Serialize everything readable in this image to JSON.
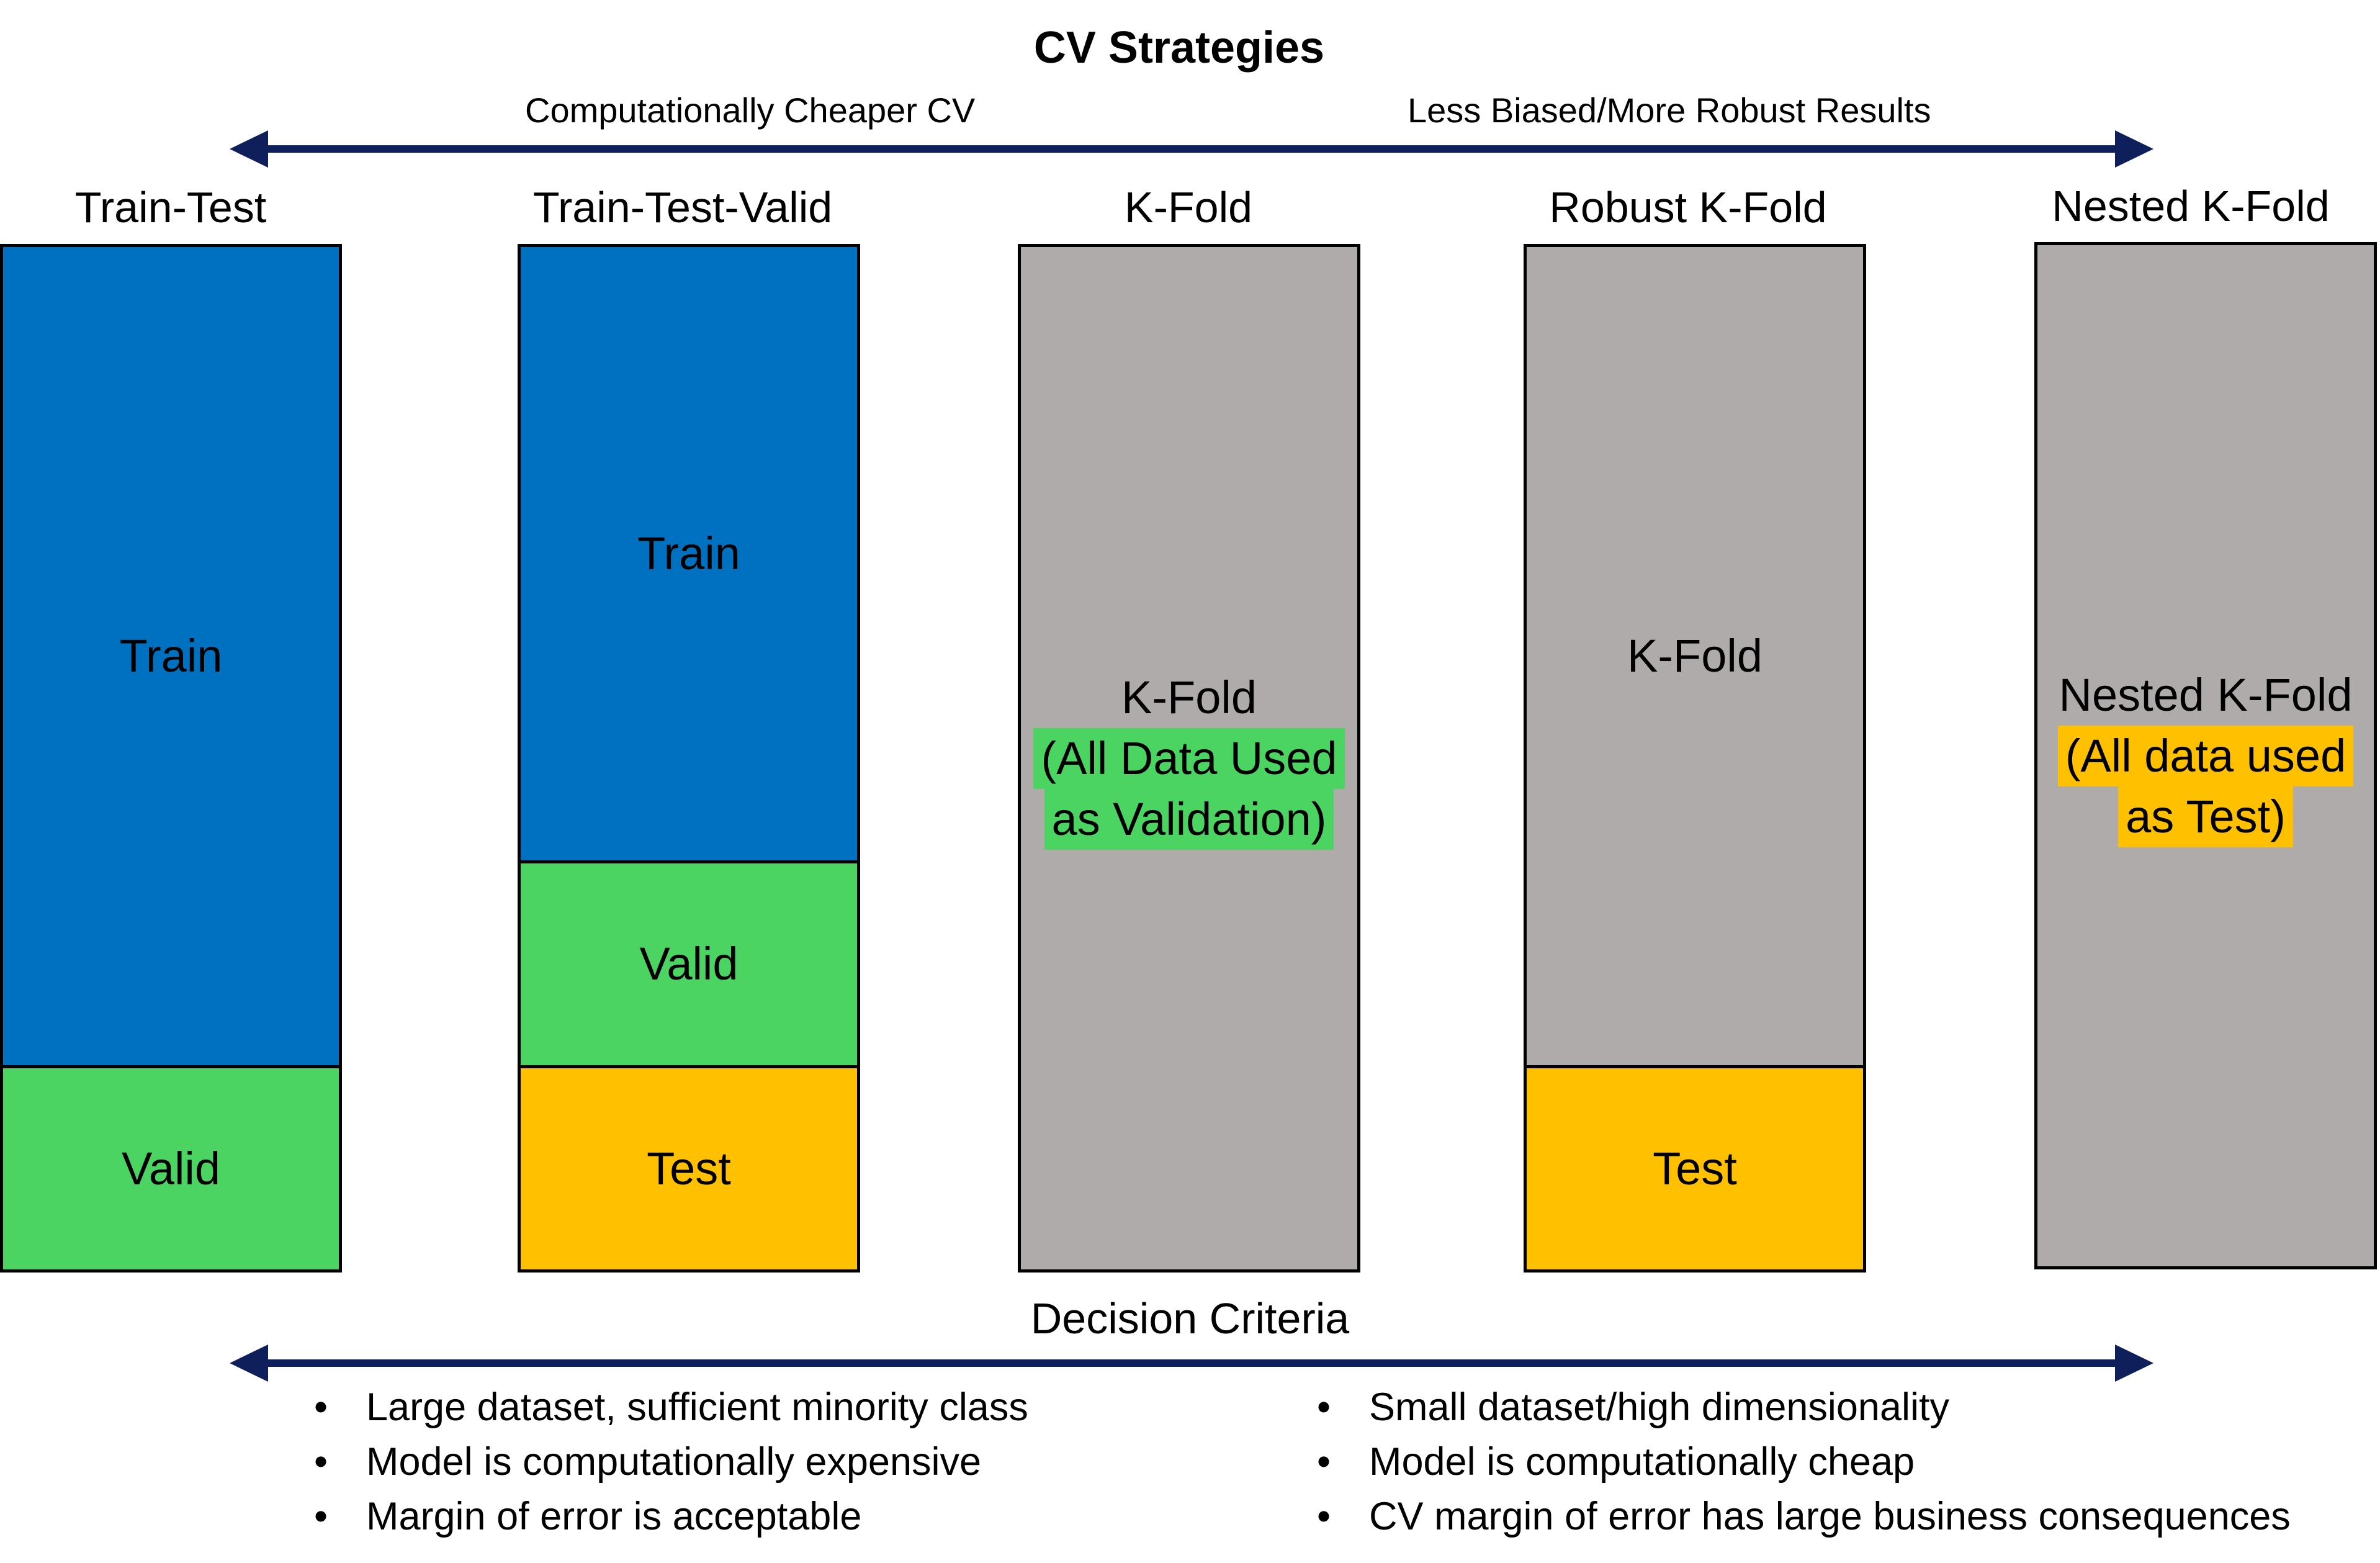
{
  "diagram": {
    "title": "CV Strategies",
    "top_arrow": {
      "left_label": "Computationally Cheaper CV",
      "right_label": "Less Biased/More Robust Results"
    },
    "columns": [
      {
        "title": "Train-Test",
        "segments": [
          {
            "label": "Train",
            "fill": "#0070C0",
            "share": 0.8
          },
          {
            "label": "Valid",
            "fill": "#4CD463",
            "share": 0.2
          }
        ]
      },
      {
        "title": "Train-Test-Valid",
        "segments": [
          {
            "label": "Train",
            "fill": "#0070C0",
            "share": 0.6
          },
          {
            "label": "Valid",
            "fill": "#4CD463",
            "share": 0.2
          },
          {
            "label": "Test",
            "fill": "#FFC000",
            "share": 0.2
          }
        ]
      },
      {
        "title": "K-Fold",
        "segments": [
          {
            "label": "K-Fold",
            "note_lines": [
              "(All Data Used",
              "as Validation)"
            ],
            "note_fill": "#4CD463",
            "fill": "#AFABAB",
            "share": 1.0
          }
        ]
      },
      {
        "title": "Robust K-Fold",
        "segments": [
          {
            "label": "K-Fold",
            "fill": "#AFABAB",
            "share": 0.8
          },
          {
            "label": "Test",
            "fill": "#FFC000",
            "share": 0.2
          }
        ]
      },
      {
        "title": "Nested K-Fold",
        "segments": [
          {
            "label": "Nested K-Fold",
            "note_lines": [
              "(All data used",
              "as Test)"
            ],
            "note_fill": "#FFC000",
            "fill": "#AFABAB",
            "share": 1.0
          }
        ]
      }
    ],
    "bottom_arrow": {
      "label": "Decision Criteria"
    },
    "criteria_left": {
      "bullet": "•",
      "items": [
        "Large dataset, sufficient minority class",
        "Model is computationally expensive",
        "Margin of error is acceptable"
      ]
    },
    "criteria_right": {
      "bullet": "•",
      "items": [
        "Small dataset/high dimensionality",
        "Model is computationally cheap",
        "CV margin of error has large business consequences"
      ]
    },
    "colors": {
      "arrow": "#0E1F5B",
      "border": "#000000",
      "train": "#0070C0",
      "valid": "#4CD463",
      "test": "#FFC000",
      "kfold": "#AFABAB"
    }
  }
}
